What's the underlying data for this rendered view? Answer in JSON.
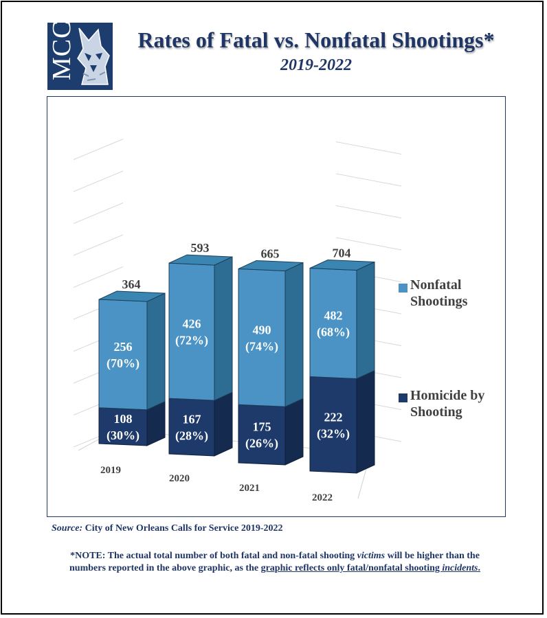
{
  "logo": {
    "text": "MCC"
  },
  "header": {
    "title": "Rates of Fatal vs. Nonfatal Shootings*",
    "subtitle": "2019-2022"
  },
  "colors": {
    "nonfatal": "#4a93c4",
    "nonfatal_side": "#2d6c93",
    "nonfatal_top": "#3a85b1",
    "homicide": "#1d3a6a",
    "homicide_side": "#142a4f",
    "title": "#1f3565"
  },
  "chart_data": {
    "type": "bar",
    "stacked": true,
    "categories": [
      "2019",
      "2020",
      "2021",
      "2022"
    ],
    "series": [
      {
        "name": "Homicide by Shooting",
        "values": [
          108,
          167,
          175,
          222
        ],
        "labels": [
          "(30%)",
          "(28%)",
          "(26%)",
          "(32%)"
        ]
      },
      {
        "name": "Nonfatal Shootings",
        "values": [
          256,
          426,
          490,
          482
        ],
        "labels": [
          "(70%)",
          "(72%)",
          "(74%)",
          "(68%)"
        ]
      }
    ],
    "totals": [
      364,
      593,
      665,
      704
    ],
    "title": "Rates of Fatal vs. Nonfatal Shootings*",
    "legend": [
      "Nonfatal Shootings",
      "Homicide by Shooting"
    ],
    "legend_position": "right",
    "ylim": [
      0,
      800
    ],
    "grid": true
  },
  "legend": {
    "nonfatal_line1": "Nonfatal",
    "nonfatal_line2": "Shootings",
    "homicide_line1": "Homicide by",
    "homicide_line2": "Shooting"
  },
  "source": {
    "label": "Source:",
    "text": "City of New Orleans Calls for Service 2019-2022"
  },
  "note": {
    "part1": "*NOTE: The actual total number of both fatal and non-fatal shooting ",
    "victims": "victims",
    "part2": " will be higher than the numbers reported in the above graphic, as the ",
    "underlined1": "graphic reflects only fatal/nonfatal shooting ",
    "incidents": "incidents",
    "end": "."
  }
}
